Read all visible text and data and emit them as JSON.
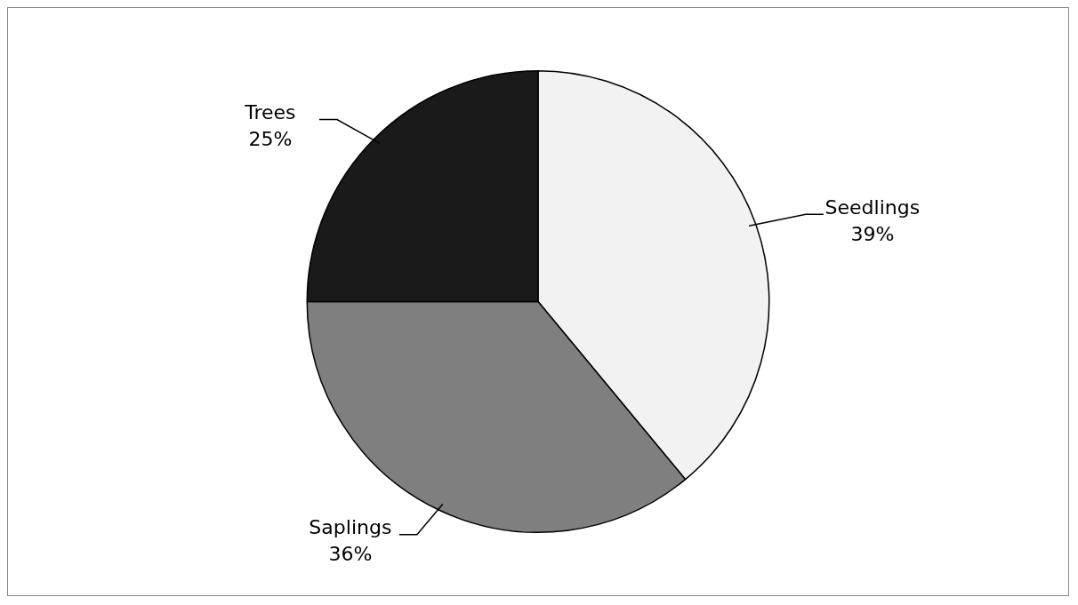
{
  "chart_data": {
    "type": "pie",
    "categories": [
      "Seedlings",
      "Saplings",
      "Trees"
    ],
    "values": [
      39,
      36,
      25
    ],
    "colors": [
      "#f2f2f2",
      "#7f7f7f",
      "#1a1a1a"
    ],
    "value_labels": [
      "39%",
      "36%",
      "25%"
    ],
    "legend": false
  }
}
